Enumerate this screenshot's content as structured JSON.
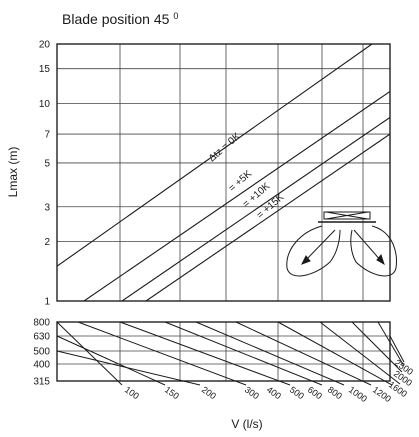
{
  "title": "Blade position  45",
  "title_superscript": "0",
  "chart_data": [
    {
      "type": "line",
      "scale": "log",
      "ylabel": "Lmax (m)",
      "y_ticks": [
        "20",
        "15",
        "10",
        "7",
        "5",
        "3",
        "2",
        "1"
      ],
      "ylim": [
        1,
        20
      ],
      "series": [
        {
          "name": "Δtz = 0K",
          "lmax_range": [
            1.5,
            20
          ]
        },
        {
          "name": "= +5K",
          "lmax_range": [
            1.0,
            11.5
          ]
        },
        {
          "name": "= +10K",
          "lmax_range": [
            1.0,
            8.5
          ]
        },
        {
          "name": "= +15K",
          "lmax_range": [
            1.0,
            7.0
          ]
        }
      ]
    },
    {
      "type": "line",
      "scale": "log",
      "xlabel": "V (l/s)",
      "x_ticks": [
        "100",
        "150",
        "200",
        "300",
        "400",
        "500",
        "600",
        "800",
        "1000",
        "1200",
        "1600",
        "2000",
        "2500"
      ],
      "y_ticks": [
        "800",
        "630",
        "500",
        "400",
        "315"
      ]
    }
  ]
}
